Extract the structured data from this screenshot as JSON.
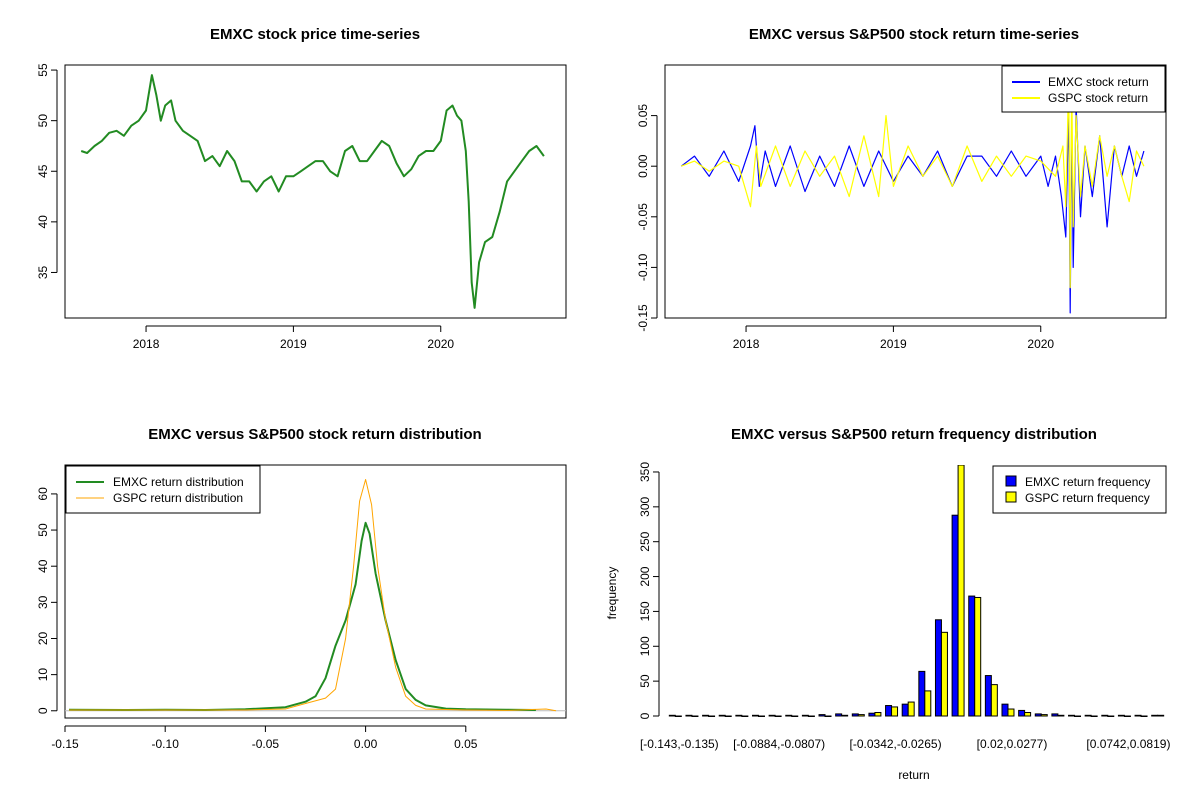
{
  "colors": {
    "emxc": "#228B22",
    "gspc_density": "#FFA500",
    "emxc_bar": "#0000FF",
    "gspc_bar": "#FFFF00",
    "emxc_line": "#0000FF",
    "gspc_line": "#FFFF00"
  },
  "chart_data": [
    {
      "id": "price",
      "type": "line",
      "title": "EMXC stock price time-series",
      "xlabel": "",
      "ylabel": "",
      "xlim": [
        2017.45,
        2020.85
      ],
      "ylim": [
        30.5,
        55.5
      ],
      "x_ticks": [
        {
          "v": 2018,
          "label": "2018"
        },
        {
          "v": 2019,
          "label": "2019"
        },
        {
          "v": 2020,
          "label": "2020"
        }
      ],
      "y_ticks": [
        {
          "v": 35,
          "label": "35"
        },
        {
          "v": 40,
          "label": "40"
        },
        {
          "v": 45,
          "label": "45"
        },
        {
          "v": 50,
          "label": "50"
        },
        {
          "v": 55,
          "label": "55"
        }
      ],
      "series": [
        {
          "name": "EMXC",
          "x": [
            2017.56,
            2017.6,
            2017.65,
            2017.7,
            2017.75,
            2017.8,
            2017.85,
            2017.9,
            2017.95,
            2018.0,
            2018.04,
            2018.07,
            2018.1,
            2018.13,
            2018.17,
            2018.2,
            2018.25,
            2018.3,
            2018.35,
            2018.4,
            2018.45,
            2018.5,
            2018.55,
            2018.6,
            2018.65,
            2018.7,
            2018.75,
            2018.8,
            2018.85,
            2018.9,
            2018.95,
            2019.0,
            2019.05,
            2019.1,
            2019.15,
            2019.2,
            2019.25,
            2019.3,
            2019.35,
            2019.4,
            2019.45,
            2019.5,
            2019.55,
            2019.6,
            2019.65,
            2019.7,
            2019.75,
            2019.8,
            2019.85,
            2019.9,
            2019.95,
            2020.0,
            2020.04,
            2020.08,
            2020.11,
            2020.14,
            2020.17,
            2020.19,
            2020.21,
            2020.23,
            2020.26,
            2020.3,
            2020.35,
            2020.4,
            2020.45,
            2020.5,
            2020.55,
            2020.6,
            2020.65,
            2020.7
          ],
          "values": [
            47,
            46.8,
            47.5,
            48,
            48.8,
            49,
            48.5,
            49.5,
            50,
            51,
            54.5,
            52.5,
            50,
            51.5,
            52,
            50,
            49,
            48.5,
            48,
            46,
            46.5,
            45.5,
            47,
            46,
            44,
            44,
            43,
            44,
            44.5,
            43,
            44.5,
            44.5,
            45,
            45.5,
            46,
            46,
            45,
            44.5,
            47,
            47.5,
            46,
            46,
            47,
            48,
            47.5,
            45.8,
            44.5,
            45.2,
            46.5,
            47,
            47,
            48,
            51,
            51.5,
            50.5,
            50,
            47,
            42,
            34,
            31.5,
            36,
            38,
            38.5,
            41,
            44,
            45,
            46,
            47,
            47.5,
            46.5
          ]
        }
      ],
      "legend": []
    },
    {
      "id": "returns",
      "type": "line",
      "title": "EMXC versus S&P500 stock return time-series",
      "xlabel": "",
      "ylabel": "",
      "xlim": [
        2017.45,
        2020.85
      ],
      "ylim": [
        -0.15,
        0.1
      ],
      "x_ticks": [
        {
          "v": 2018,
          "label": "2018"
        },
        {
          "v": 2019,
          "label": "2019"
        },
        {
          "v": 2020,
          "label": "2020"
        }
      ],
      "y_ticks": [
        {
          "v": -0.15,
          "label": "-0.15"
        },
        {
          "v": -0.1,
          "label": "-0.10"
        },
        {
          "v": -0.05,
          "label": "-0.05"
        },
        {
          "v": 0,
          "label": "0.00"
        },
        {
          "v": 0.05,
          "label": "0.05"
        }
      ],
      "series": [
        {
          "name": "EMXC stock return",
          "x": [
            2017.56,
            2017.65,
            2017.75,
            2017.85,
            2017.95,
            2018.03,
            2018.06,
            2018.09,
            2018.13,
            2018.2,
            2018.3,
            2018.4,
            2018.5,
            2018.6,
            2018.7,
            2018.8,
            2018.9,
            2019.0,
            2019.1,
            2019.2,
            2019.3,
            2019.4,
            2019.5,
            2019.6,
            2019.7,
            2019.8,
            2019.9,
            2020.0,
            2020.05,
            2020.1,
            2020.14,
            2020.17,
            2020.19,
            2020.2,
            2020.21,
            2020.22,
            2020.24,
            2020.27,
            2020.3,
            2020.35,
            2020.4,
            2020.45,
            2020.5,
            2020.55,
            2020.6,
            2020.65,
            2020.7
          ],
          "values": [
            0,
            0.01,
            -0.01,
            0.015,
            -0.015,
            0.02,
            0.04,
            -0.02,
            0.015,
            -0.02,
            0.02,
            -0.025,
            0.01,
            -0.02,
            0.02,
            -0.02,
            0.015,
            -0.015,
            0.01,
            -0.01,
            0.015,
            -0.02,
            0.01,
            0.01,
            -0.01,
            0.015,
            -0.01,
            0.01,
            -0.02,
            0.01,
            -0.03,
            -0.07,
            0.06,
            -0.145,
            0.05,
            -0.1,
            0.06,
            -0.05,
            0.02,
            -0.03,
            0.03,
            -0.06,
            0.02,
            -0.01,
            0.02,
            -0.01,
            0.015
          ]
        },
        {
          "name": "GSPC stock return",
          "x": [
            2017.56,
            2017.65,
            2017.75,
            2017.85,
            2017.95,
            2018.03,
            2018.07,
            2018.1,
            2018.2,
            2018.3,
            2018.4,
            2018.5,
            2018.6,
            2018.7,
            2018.8,
            2018.9,
            2018.95,
            2019.0,
            2019.1,
            2019.2,
            2019.3,
            2019.4,
            2019.5,
            2019.6,
            2019.7,
            2019.8,
            2019.9,
            2020.0,
            2020.1,
            2020.15,
            2020.17,
            2020.19,
            2020.2,
            2020.21,
            2020.22,
            2020.24,
            2020.27,
            2020.3,
            2020.35,
            2020.4,
            2020.45,
            2020.5,
            2020.55,
            2020.6,
            2020.65,
            2020.7
          ],
          "values": [
            0,
            0.005,
            -0.005,
            0.005,
            0,
            -0.04,
            0.02,
            -0.02,
            0.02,
            -0.02,
            0.015,
            -0.01,
            0.01,
            -0.03,
            0.03,
            -0.03,
            0.05,
            -0.02,
            0.02,
            -0.01,
            0.01,
            -0.02,
            0.02,
            -0.015,
            0.01,
            -0.01,
            0.01,
            0.005,
            -0.01,
            0.02,
            -0.04,
            0.09,
            -0.12,
            0.09,
            -0.06,
            0.05,
            -0.03,
            0.02,
            -0.02,
            0.03,
            -0.01,
            0.02,
            -0.01,
            -0.035,
            0.015,
            0
          ]
        }
      ],
      "legend": [
        "EMXC stock return",
        "GSPC stock return"
      ]
    },
    {
      "id": "density",
      "type": "line",
      "title": "EMXC versus S&P500 stock return distribution",
      "xlabel": "",
      "ylabel": "",
      "xlim": [
        -0.15,
        0.1
      ],
      "ylim": [
        -2,
        68
      ],
      "x_ticks": [
        {
          "v": -0.15,
          "label": "-0.15"
        },
        {
          "v": -0.1,
          "label": "-0.10"
        },
        {
          "v": -0.05,
          "label": "-0.05"
        },
        {
          "v": 0,
          "label": "0.00"
        },
        {
          "v": 0.05,
          "label": "0.05"
        }
      ],
      "y_ticks": [
        {
          "v": 0,
          "label": "0"
        },
        {
          "v": 10,
          "label": "10"
        },
        {
          "v": 20,
          "label": "20"
        },
        {
          "v": 30,
          "label": "30"
        },
        {
          "v": 40,
          "label": "40"
        },
        {
          "v": 50,
          "label": "50"
        },
        {
          "v": 60,
          "label": "60"
        }
      ],
      "series": [
        {
          "name": "EMXC return distribution",
          "x": [
            -0.148,
            -0.12,
            -0.1,
            -0.08,
            -0.06,
            -0.04,
            -0.03,
            -0.025,
            -0.02,
            -0.015,
            -0.01,
            -0.005,
            -0.002,
            0,
            0.002,
            0.005,
            0.01,
            0.015,
            0.02,
            0.025,
            0.03,
            0.04,
            0.05,
            0.07,
            0.085
          ],
          "values": [
            0.3,
            0.2,
            0.3,
            0.2,
            0.4,
            1,
            2.5,
            4,
            9,
            18,
            25,
            35,
            47,
            52,
            49,
            38,
            25,
            14,
            6,
            3,
            1.5,
            0.6,
            0.4,
            0.3,
            0.2
          ]
        },
        {
          "name": "GSPC return distribution",
          "x": [
            -0.148,
            -0.1,
            -0.06,
            -0.04,
            -0.03,
            -0.02,
            -0.015,
            -0.01,
            -0.006,
            -0.003,
            0,
            0.003,
            0.006,
            0.01,
            0.015,
            0.02,
            0.025,
            0.03,
            0.05,
            0.07,
            0.09,
            0.095
          ],
          "values": [
            0.2,
            0.2,
            0.2,
            0.5,
            2,
            3.5,
            6,
            20,
            40,
            58,
            64,
            57,
            40,
            25,
            12,
            4,
            1.5,
            0.5,
            0.2,
            0.1,
            0.5,
            0
          ]
        }
      ],
      "legend": [
        "EMXC return distribution",
        "GSPC return distribution"
      ]
    },
    {
      "id": "histogram",
      "type": "bar",
      "title": "EMXC versus S&P500 return frequency distribution",
      "xlabel": "return",
      "ylabel": "frequency",
      "ylim": [
        0,
        360
      ],
      "y_ticks": [
        {
          "v": 0,
          "label": "0"
        },
        {
          "v": 50,
          "label": "50"
        },
        {
          "v": 100,
          "label": "100"
        },
        {
          "v": 150,
          "label": "150"
        },
        {
          "v": 200,
          "label": "200"
        },
        {
          "v": 250,
          "label": "250"
        },
        {
          "v": 300,
          "label": "300"
        },
        {
          "v": 350,
          "label": "350"
        }
      ],
      "category_tick_labels": [
        {
          "index": 0,
          "label": "[-0.143,-0.135)"
        },
        {
          "index": 6,
          "label": "[-0.0884,-0.0807)"
        },
        {
          "index": 13,
          "label": "[-0.0342,-0.0265)"
        },
        {
          "index": 20,
          "label": "[0.02,0.0277)"
        },
        {
          "index": 27,
          "label": "[0.0742,0.0819)"
        }
      ],
      "series": [
        {
          "name": "EMXC return frequency",
          "values": [
            1,
            1,
            1,
            1,
            1,
            1,
            1,
            1,
            1,
            2,
            3,
            3,
            4,
            15,
            17,
            64,
            138,
            288,
            172,
            58,
            17,
            8,
            3,
            3,
            1,
            1,
            1,
            1,
            1,
            1
          ]
        },
        {
          "name": "GSPC return frequency",
          "values": [
            0,
            0,
            0,
            0,
            0,
            0,
            0,
            0,
            0,
            0,
            1,
            2,
            5,
            13,
            20,
            36,
            120,
            360,
            170,
            45,
            10,
            5,
            2,
            1,
            0,
            0,
            0,
            0,
            0,
            1
          ]
        }
      ],
      "legend": [
        "EMXC return frequency",
        "GSPC return frequency"
      ]
    }
  ]
}
